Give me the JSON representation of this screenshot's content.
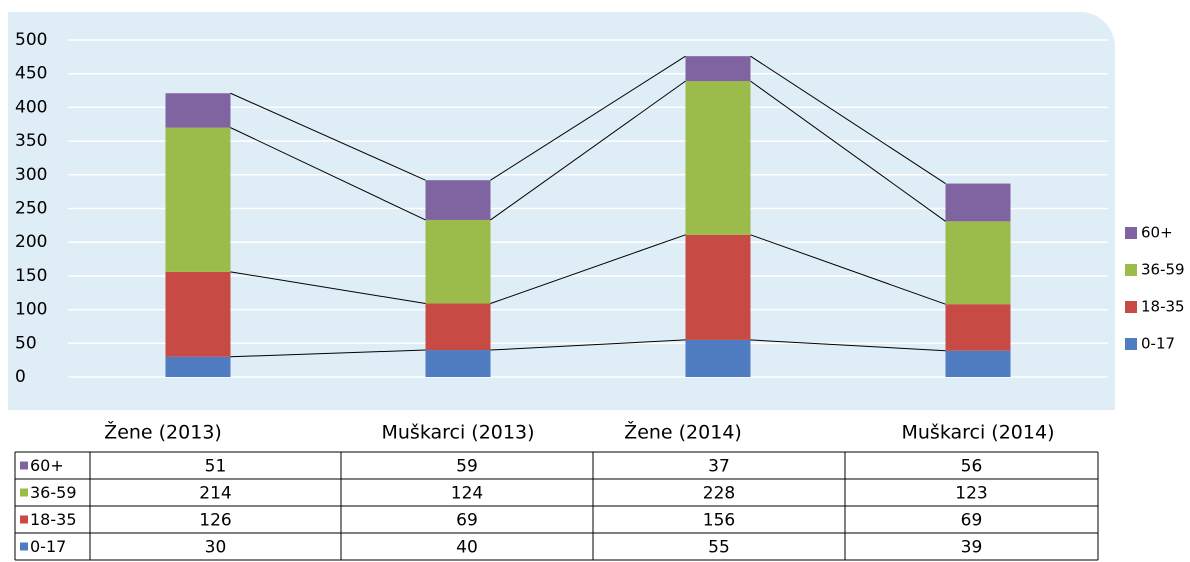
{
  "chart_data": {
    "type": "bar",
    "stacked": true,
    "categories": [
      "Žene (2013)",
      "Muškarci (2013)",
      "Žene (2014)",
      "Muškarci (2014)"
    ],
    "series": [
      {
        "name": "0-17",
        "color": "#4f7cc1",
        "values": [
          30,
          40,
          55,
          39
        ]
      },
      {
        "name": "18-35",
        "color": "#c84a45",
        "values": [
          126,
          69,
          156,
          69
        ]
      },
      {
        "name": "36-59",
        "color": "#9bbb4a",
        "values": [
          214,
          124,
          228,
          123
        ]
      },
      {
        "name": "60+",
        "color": "#8064a2",
        "values": [
          51,
          59,
          37,
          56
        ]
      }
    ],
    "ylim": [
      0,
      500
    ],
    "yticks": [
      0,
      50,
      100,
      150,
      200,
      250,
      300,
      350,
      400,
      450,
      500
    ],
    "grid": true,
    "legend": "right",
    "series_lines": true,
    "data_table": true
  }
}
